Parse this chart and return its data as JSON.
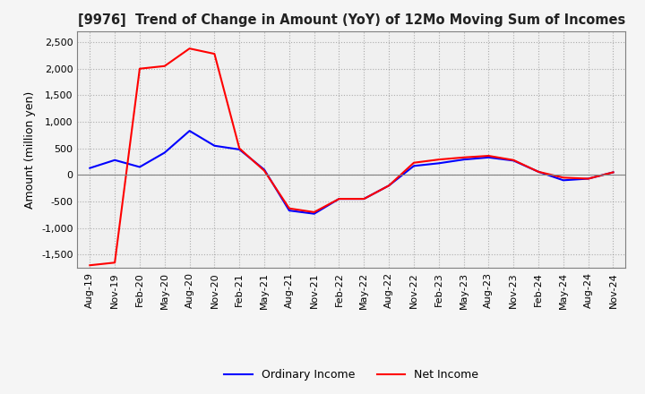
{
  "title": "[9976]  Trend of Change in Amount (YoY) of 12Mo Moving Sum of Incomes",
  "ylabel": "Amount (million yen)",
  "ylim": [
    -1750,
    2700
  ],
  "yticks": [
    -1500,
    -1000,
    -500,
    0,
    500,
    1000,
    1500,
    2000,
    2500
  ],
  "legend_labels": [
    "Ordinary Income",
    "Net Income"
  ],
  "line_colors": [
    "blue",
    "red"
  ],
  "x_labels": [
    "Aug-19",
    "Nov-19",
    "Feb-20",
    "May-20",
    "Aug-20",
    "Nov-20",
    "Feb-21",
    "May-21",
    "Aug-21",
    "Nov-21",
    "Feb-22",
    "May-22",
    "Aug-22",
    "Nov-22",
    "Feb-23",
    "May-23",
    "Aug-23",
    "Nov-23",
    "Feb-24",
    "May-24",
    "Aug-24",
    "Nov-24"
  ],
  "ordinary_income": [
    130,
    280,
    150,
    420,
    830,
    550,
    480,
    100,
    -670,
    -730,
    -450,
    -450,
    -200,
    170,
    220,
    290,
    330,
    270,
    60,
    -100,
    -70,
    50
  ],
  "net_income": [
    -1700,
    -1650,
    2000,
    2050,
    2380,
    2280,
    500,
    80,
    -630,
    -700,
    -450,
    -450,
    -200,
    230,
    290,
    330,
    360,
    280,
    60,
    -50,
    -70,
    50
  ],
  "background_color": "#f5f5f5",
  "plot_bg_color": "#f0f0f0"
}
